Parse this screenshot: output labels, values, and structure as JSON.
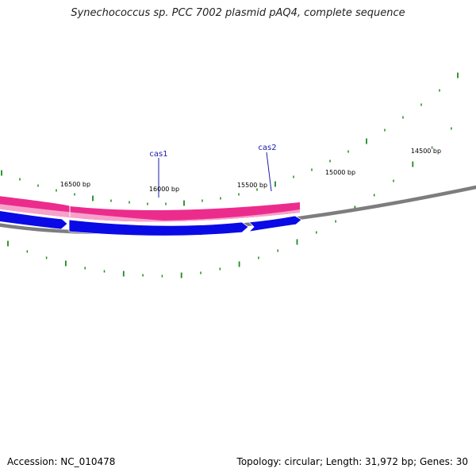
{
  "title": "Synechococcus sp. PCC 7002 plasmid pAQ4, complete sequence",
  "footer": {
    "accession": "Accession: NC_010478",
    "summary": "Topology: circular; Length: 31,972 bp; Genes: 30"
  },
  "colors": {
    "backbone": "#7d7d7d",
    "tick": "#1f8a1f",
    "forward_feature": "#ec2c8c",
    "forward_feature_light": "#f6a3cc",
    "reverse_gene": "#0a0ae6",
    "gene_label": "#1a1aaa"
  },
  "ticks": [
    {
      "position_bp": 16500,
      "label": "16500 bp"
    },
    {
      "position_bp": 16000,
      "label": "16000 bp"
    },
    {
      "position_bp": 15500,
      "label": "15500 bp"
    },
    {
      "position_bp": 15000,
      "label": "15000 bp"
    },
    {
      "position_bp": 14500,
      "label": "14500 bp"
    }
  ],
  "gene_labels": [
    {
      "name": "cas1"
    },
    {
      "name": "cas2"
    }
  ]
}
